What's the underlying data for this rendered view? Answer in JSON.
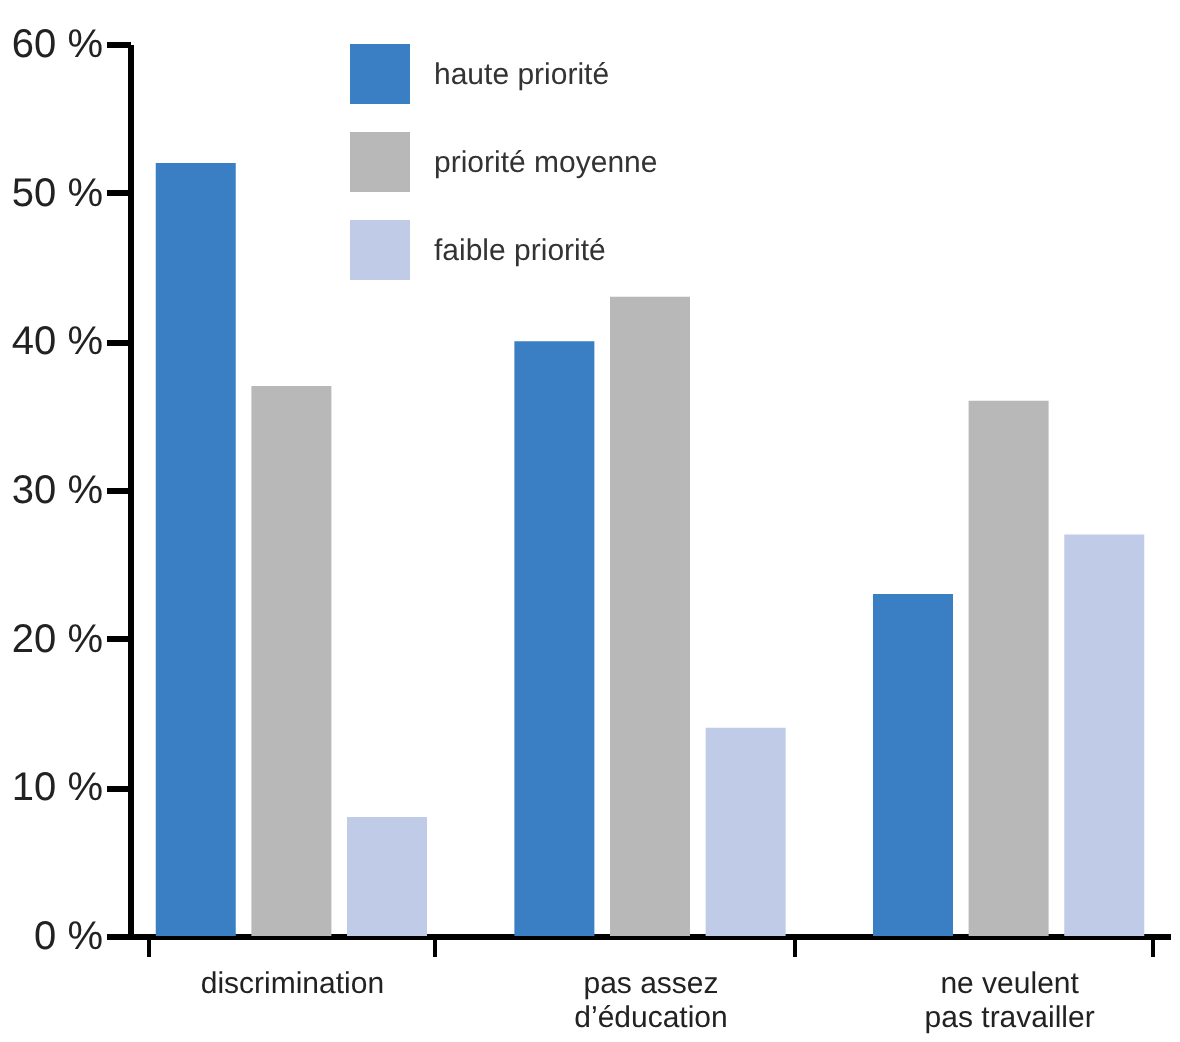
{
  "chart_data": {
    "type": "bar",
    "categories": [
      "discrimination",
      "pas assez\nd’éducation",
      "ne veulent\npas travailler"
    ],
    "series": [
      {
        "name": "haute priorité",
        "color": "#3a7fc3",
        "values": [
          52,
          40,
          23
        ]
      },
      {
        "name": "priorité moyenne",
        "color": "#b8b8b8",
        "values": [
          37,
          43,
          36
        ]
      },
      {
        "name": "faible priorité",
        "color": "#c0cbe8",
        "values": [
          8,
          14,
          27
        ]
      }
    ],
    "ylim": [
      0,
      60
    ],
    "yticks": [
      {
        "value": 0,
        "label": "0 %"
      },
      {
        "value": 10,
        "label": "10 %"
      },
      {
        "value": 20,
        "label": "20 %"
      },
      {
        "value": 30,
        "label": "30 %"
      },
      {
        "value": 40,
        "label": "40 %"
      },
      {
        "value": 50,
        "label": "50 %"
      },
      {
        "value": 60,
        "label": "60 %"
      }
    ],
    "grid": false,
    "legend": "top"
  }
}
